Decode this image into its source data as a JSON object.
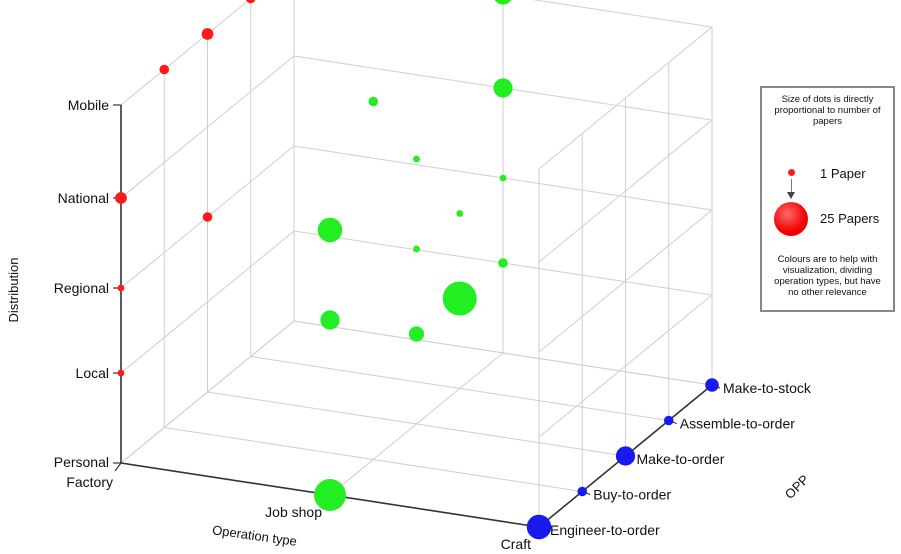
{
  "chart_data": {
    "type": "scatter",
    "title": "",
    "axes": {
      "operation_type": {
        "label": "Operation type",
        "ticks": [
          "Factory",
          "Job shop",
          "Craft"
        ]
      },
      "distribution": {
        "label": "Distribution",
        "ticks": [
          "Personal",
          "Local",
          "Regional",
          "National",
          "Mobile"
        ]
      },
      "opp": {
        "label": "OPP",
        "ticks": [
          "Engineer-to-order",
          "Buy-to-order",
          "Make-to-order",
          "Assemble-to-order",
          "Make-to-stock"
        ]
      }
    },
    "colors": {
      "red": "#ff1a1a",
      "green": "#22ee22",
      "blue": "#1a1aee"
    },
    "points": [
      {
        "operation_type": "Factory",
        "distribution": "Mobile",
        "opp": "Make-to-stock",
        "papers": 2,
        "color": "red"
      },
      {
        "operation_type": "Factory",
        "distribution": "Mobile",
        "opp": "Assemble-to-order",
        "papers": 2,
        "color": "red"
      },
      {
        "operation_type": "Factory",
        "distribution": "Mobile",
        "opp": "Make-to-order",
        "papers": 3,
        "color": "red"
      },
      {
        "operation_type": "Factory",
        "distribution": "Mobile",
        "opp": "Buy-to-order",
        "papers": 2,
        "color": "red"
      },
      {
        "operation_type": "Factory",
        "distribution": "National",
        "opp": "Engineer-to-order",
        "papers": 3,
        "color": "red"
      },
      {
        "operation_type": "Factory",
        "distribution": "Regional",
        "opp": "Engineer-to-order",
        "papers": 1,
        "color": "red"
      },
      {
        "operation_type": "Factory",
        "distribution": "Regional",
        "opp": "Make-to-order",
        "papers": 2,
        "color": "red"
      },
      {
        "operation_type": "Factory",
        "distribution": "Local",
        "opp": "Engineer-to-order",
        "papers": 1,
        "color": "red"
      },
      {
        "operation_type": "Job shop",
        "distribution": "Mobile",
        "opp": "Make-to-stock",
        "papers": 8,
        "color": "green"
      },
      {
        "operation_type": "Job shop",
        "distribution": "Mobile",
        "opp": "Buy-to-order",
        "papers": 2,
        "color": "green"
      },
      {
        "operation_type": "Job shop",
        "distribution": "National",
        "opp": "Make-to-stock",
        "papers": 8,
        "color": "green"
      },
      {
        "operation_type": "Job shop",
        "distribution": "National",
        "opp": "Make-to-order",
        "papers": 1,
        "color": "green"
      },
      {
        "operation_type": "Job shop",
        "distribution": "National",
        "opp": "Engineer-to-order",
        "papers": 13,
        "color": "green"
      },
      {
        "operation_type": "Job shop",
        "distribution": "Regional",
        "opp": "Make-to-stock",
        "papers": 1,
        "color": "green"
      },
      {
        "operation_type": "Job shop",
        "distribution": "Regional",
        "opp": "Assemble-to-order",
        "papers": 1,
        "color": "green"
      },
      {
        "operation_type": "Job shop",
        "distribution": "Regional",
        "opp": "Make-to-order",
        "papers": 1,
        "color": "green"
      },
      {
        "operation_type": "Job shop",
        "distribution": "Regional",
        "opp": "Engineer-to-order",
        "papers": 8,
        "color": "green"
      },
      {
        "operation_type": "Job shop",
        "distribution": "Local",
        "opp": "Make-to-stock",
        "papers": 2,
        "color": "green"
      },
      {
        "operation_type": "Job shop",
        "distribution": "Local",
        "opp": "Assemble-to-order",
        "papers": 25,
        "color": "green"
      },
      {
        "operation_type": "Job shop",
        "distribution": "Local",
        "opp": "Make-to-order",
        "papers": 5,
        "color": "green"
      },
      {
        "operation_type": "Job shop",
        "distribution": "Personal",
        "opp": "Engineer-to-order",
        "papers": 22,
        "color": "green"
      },
      {
        "operation_type": "Craft",
        "distribution": "Personal",
        "opp": "Make-to-stock",
        "papers": 4,
        "color": "blue"
      },
      {
        "operation_type": "Craft",
        "distribution": "Personal",
        "opp": "Assemble-to-order",
        "papers": 2,
        "color": "blue"
      },
      {
        "operation_type": "Craft",
        "distribution": "Personal",
        "opp": "Make-to-order",
        "papers": 8,
        "color": "blue"
      },
      {
        "operation_type": "Craft",
        "distribution": "Personal",
        "opp": "Buy-to-order",
        "papers": 2,
        "color": "blue"
      },
      {
        "operation_type": "Craft",
        "distribution": "Personal",
        "opp": "Engineer-to-order",
        "papers": 13,
        "color": "blue"
      }
    ],
    "legend": {
      "position": "right",
      "header": "Size of dots is directly proportional to number of papers",
      "small_label": "1 Paper",
      "large_label": "25 Papers",
      "footer": "Colours are to help with visualization, dividing operation types, but have no other relevance"
    },
    "grid": true
  }
}
